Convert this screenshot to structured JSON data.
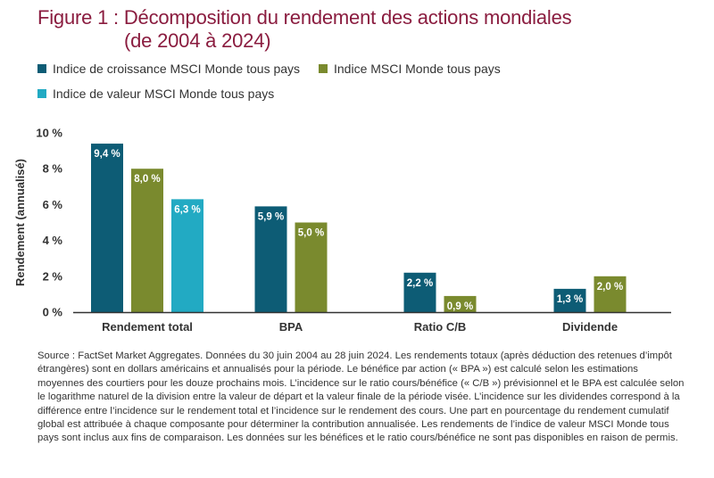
{
  "title": {
    "line1": "Figure 1 : Décomposition du rendement des actions mondiales",
    "line2": "(de 2004 à 2024)"
  },
  "colors": {
    "title": "#8a1c3f",
    "growth": "#0d5c75",
    "msci": "#7a8a2e",
    "value": "#22aac3",
    "axis": "#333333",
    "text": "#333333"
  },
  "chart_data": {
    "type": "bar",
    "categories": [
      "Rendement total",
      "BPA",
      "Ratio C/B",
      "Dividende"
    ],
    "series": [
      {
        "name": "Indice de croissance MSCI Monde tous pays",
        "values": [
          9.4,
          5.9,
          2.2,
          1.3
        ],
        "labels": [
          "9,4 %",
          "5,9 %",
          "2,2 %",
          "1,3 %"
        ]
      },
      {
        "name": "Indice MSCI Monde tous pays",
        "values": [
          8.0,
          5.0,
          0.9,
          2.0
        ],
        "labels": [
          "8,0 %",
          "5,0 %",
          "0,9 %",
          "2,0 %"
        ]
      },
      {
        "name": "Indice de valeur MSCI Monde tous pays",
        "values": [
          6.3,
          null,
          null,
          null
        ],
        "labels": [
          "6,3 %",
          null,
          null,
          null
        ]
      }
    ],
    "ylabel": "Rendement (annualisé)",
    "ylim": [
      0,
      10
    ],
    "yticks": [
      "0 %",
      "2 %",
      "4 %",
      "6 %",
      "8 %",
      "10 %"
    ],
    "grid": false,
    "legend_position": "top"
  },
  "source": "Source : FactSet Market Aggregates. Données du 30 juin 2004 au 28 juin 2024. Les rendements totaux (après déduction des retenues d’impôt étrangères) sont en dollars américains et annualisés pour la période. Le bénéfice par action (« BPA ») est calculé selon les estimations moyennes des courtiers pour les douze prochains mois. L’incidence sur le ratio cours/bénéfice (« C/B ») prévisionnel et le BPA est calculée selon le logarithme naturel de la division entre la valeur de départ et la valeur finale de la période visée. L’incidence sur les dividendes correspond à la différence entre l’incidence sur le rendement total et l’incidence sur le rendement des cours. Une part en pourcentage du rendement cumulatif global est attribuée à chaque composante pour déterminer la contribution annualisée. Les rendements de l’indice de valeur MSCI Monde tous pays sont inclus aux fins de comparaison. Les données sur les bénéfices et le ratio cours/bénéfice ne sont pas disponibles en raison de permis."
}
